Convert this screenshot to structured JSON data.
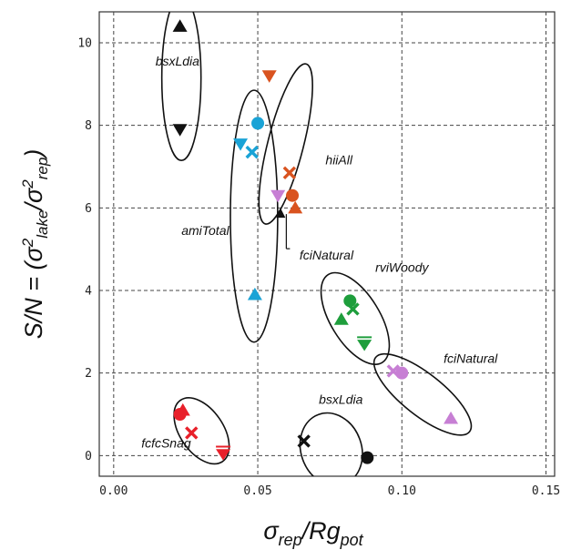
{
  "chart_data": {
    "type": "scatter",
    "title": "",
    "ylabel": {
      "lead": "S/N = (σ",
      "p1": "2",
      "s1": "lake",
      "mid": "/σ",
      "p2": "2",
      "s2": "rep",
      "tail": ")"
    },
    "xlabel": {
      "main": "σ",
      "s1": "rep",
      "mid": "/Rg",
      "s2": "pot"
    },
    "xlim": [
      -0.005,
      0.153
    ],
    "ylim": [
      -0.5,
      10.75
    ],
    "xticks": [
      0.0,
      0.05,
      0.1,
      0.15
    ],
    "xtick_labels": [
      "0.00",
      "0.05",
      "0.10",
      "0.15"
    ],
    "yticks": [
      0,
      2,
      4,
      6,
      8,
      10
    ],
    "ytick_labels": [
      "0",
      "2",
      "4",
      "6",
      "8",
      "10"
    ],
    "grid": true,
    "colors": {
      "black": "#111111",
      "cyan": "#1aa3d6",
      "orange": "#d9531f",
      "purple": "#c77fd4",
      "green": "#1e9e3c",
      "red": "#e8202a"
    },
    "series": [
      {
        "points": [
          {
            "x": 0.023,
            "y": 10.4,
            "marker": "triangle-up",
            "color": "black"
          },
          {
            "x": 0.023,
            "y": 7.9,
            "marker": "triangle-down",
            "color": "black"
          },
          {
            "x": 0.058,
            "y": 5.85,
            "marker": "triangle-up-small",
            "color": "black"
          },
          {
            "x": 0.066,
            "y": 0.35,
            "marker": "x",
            "color": "black"
          },
          {
            "x": 0.088,
            "y": -0.05,
            "marker": "circle",
            "color": "black"
          }
        ]
      },
      {
        "points": [
          {
            "x": 0.05,
            "y": 8.05,
            "marker": "circle",
            "color": "cyan"
          },
          {
            "x": 0.044,
            "y": 7.55,
            "marker": "triangle-down",
            "color": "cyan"
          },
          {
            "x": 0.048,
            "y": 7.35,
            "marker": "x",
            "color": "cyan"
          },
          {
            "x": 0.049,
            "y": 3.9,
            "marker": "triangle-up",
            "color": "cyan"
          }
        ]
      },
      {
        "points": [
          {
            "x": 0.054,
            "y": 9.2,
            "marker": "triangle-down",
            "color": "orange"
          },
          {
            "x": 0.061,
            "y": 6.85,
            "marker": "x",
            "color": "orange"
          },
          {
            "x": 0.062,
            "y": 6.3,
            "marker": "circle",
            "color": "orange"
          },
          {
            "x": 0.063,
            "y": 6.0,
            "marker": "triangle-up",
            "color": "orange"
          }
        ]
      },
      {
        "points": [
          {
            "x": 0.057,
            "y": 6.3,
            "marker": "triangle-down",
            "color": "purple"
          },
          {
            "x": 0.097,
            "y": 2.05,
            "marker": "x",
            "color": "purple"
          },
          {
            "x": 0.1,
            "y": 2.0,
            "marker": "circle",
            "color": "purple"
          },
          {
            "x": 0.117,
            "y": 0.9,
            "marker": "triangle-up",
            "color": "purple"
          }
        ]
      },
      {
        "points": [
          {
            "x": 0.082,
            "y": 3.75,
            "marker": "circle",
            "color": "green"
          },
          {
            "x": 0.083,
            "y": 3.55,
            "marker": "x",
            "color": "green"
          },
          {
            "x": 0.079,
            "y": 3.3,
            "marker": "triangle-up",
            "color": "green"
          },
          {
            "x": 0.087,
            "y": 2.7,
            "marker": "triangle-down-bar",
            "color": "green"
          }
        ]
      },
      {
        "points": [
          {
            "x": 0.023,
            "y": 1.0,
            "marker": "circle",
            "color": "red"
          },
          {
            "x": 0.024,
            "y": 1.1,
            "marker": "triangle-up",
            "color": "red"
          },
          {
            "x": 0.027,
            "y": 0.55,
            "marker": "x",
            "color": "red"
          },
          {
            "x": 0.038,
            "y": 0.05,
            "marker": "triangle-down-bar",
            "color": "red"
          }
        ]
      }
    ],
    "groups": [
      {
        "label": "bsxLdia",
        "cx": 0.0235,
        "cy": 9.15,
        "rx": 0.0068,
        "ry": 2.0,
        "angle": 0
      },
      {
        "label": "amiTotal",
        "cx": 0.0487,
        "cy": 5.8,
        "rx": 0.0082,
        "ry": 3.05,
        "angle": 0
      },
      {
        "label": "hiiAll",
        "cx": 0.0597,
        "cy": 7.55,
        "rx": 0.0062,
        "ry": 2.0,
        "angle": -0.25
      },
      {
        "label": "fciNatural",
        "cx": 0.0599,
        "cy": 5.85,
        "rx": 0,
        "ry": 0,
        "angle": 0
      },
      {
        "label": "rviWoody",
        "cx": 0.0838,
        "cy": 3.32,
        "rx": 0.0085,
        "ry": 1.25,
        "angle": 0.55
      },
      {
        "label": "fciNatural",
        "cx": 0.1072,
        "cy": 1.48,
        "rx": 0.0072,
        "ry": 1.45,
        "angle": 0.9
      },
      {
        "label": "bsxLdia",
        "cx": 0.0755,
        "cy": 0.15,
        "rx": 0.0105,
        "ry": 0.9,
        "angle": 0.35
      },
      {
        "label": "fcfcSnag",
        "cx": 0.0305,
        "cy": 0.6,
        "rx": 0.0075,
        "ry": 0.9,
        "angle": 0.6
      }
    ],
    "labels": [
      {
        "text": "bsxLdia",
        "x": 0.0145,
        "y": 9.45
      },
      {
        "text": "amiTotal",
        "x": 0.0235,
        "y": 5.35
      },
      {
        "text": "hiiAll",
        "x": 0.0735,
        "y": 7.05
      },
      {
        "text": "fciNatural",
        "x": 0.0645,
        "y": 4.75
      },
      {
        "text": "rviWoody",
        "x": 0.0908,
        "y": 4.45
      },
      {
        "text": "fciNatural",
        "x": 0.1145,
        "y": 2.25
      },
      {
        "text": "bsxLdia",
        "x": 0.0712,
        "y": 1.25
      },
      {
        "text": "fcfcSnag",
        "x": 0.0096,
        "y": 0.2
      }
    ]
  }
}
